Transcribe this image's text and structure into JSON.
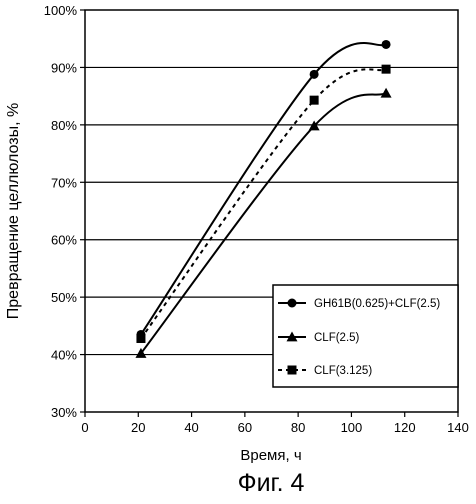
{
  "chart_data": {
    "type": "line",
    "xlabel": "Время, ч",
    "ylabel": "Превращение целлюлозы, %",
    "caption": "Фиг. 4",
    "xlim": [
      0,
      140
    ],
    "ylim": [
      30,
      100
    ],
    "x_ticks": [
      0,
      20,
      40,
      60,
      80,
      100,
      120,
      140
    ],
    "y_ticks": [
      30,
      40,
      50,
      60,
      70,
      80,
      90,
      100
    ],
    "y_tick_labels": [
      "30%",
      "40%",
      "50%",
      "60%",
      "70%",
      "80%",
      "90%",
      "100%"
    ],
    "grid": "horizontal",
    "legend_position": "lower-right",
    "series": [
      {
        "name": "GH61B(0.625)+CLF(2.5)",
        "marker": "circle",
        "line": "solid",
        "color": "#000000",
        "x": [
          21,
          86,
          113
        ],
        "y": [
          43.5,
          88.8,
          94
        ]
      },
      {
        "name": "CLF(2.5)",
        "marker": "triangle",
        "line": "solid",
        "color": "#000000",
        "x": [
          21,
          86,
          113
        ],
        "y": [
          40.2,
          79.8,
          85.5
        ]
      },
      {
        "name": "CLF(3.125)",
        "marker": "square",
        "line": "dashed",
        "color": "#000000",
        "x": [
          21,
          86,
          113
        ],
        "y": [
          42.8,
          84.3,
          89.7
        ]
      }
    ]
  }
}
